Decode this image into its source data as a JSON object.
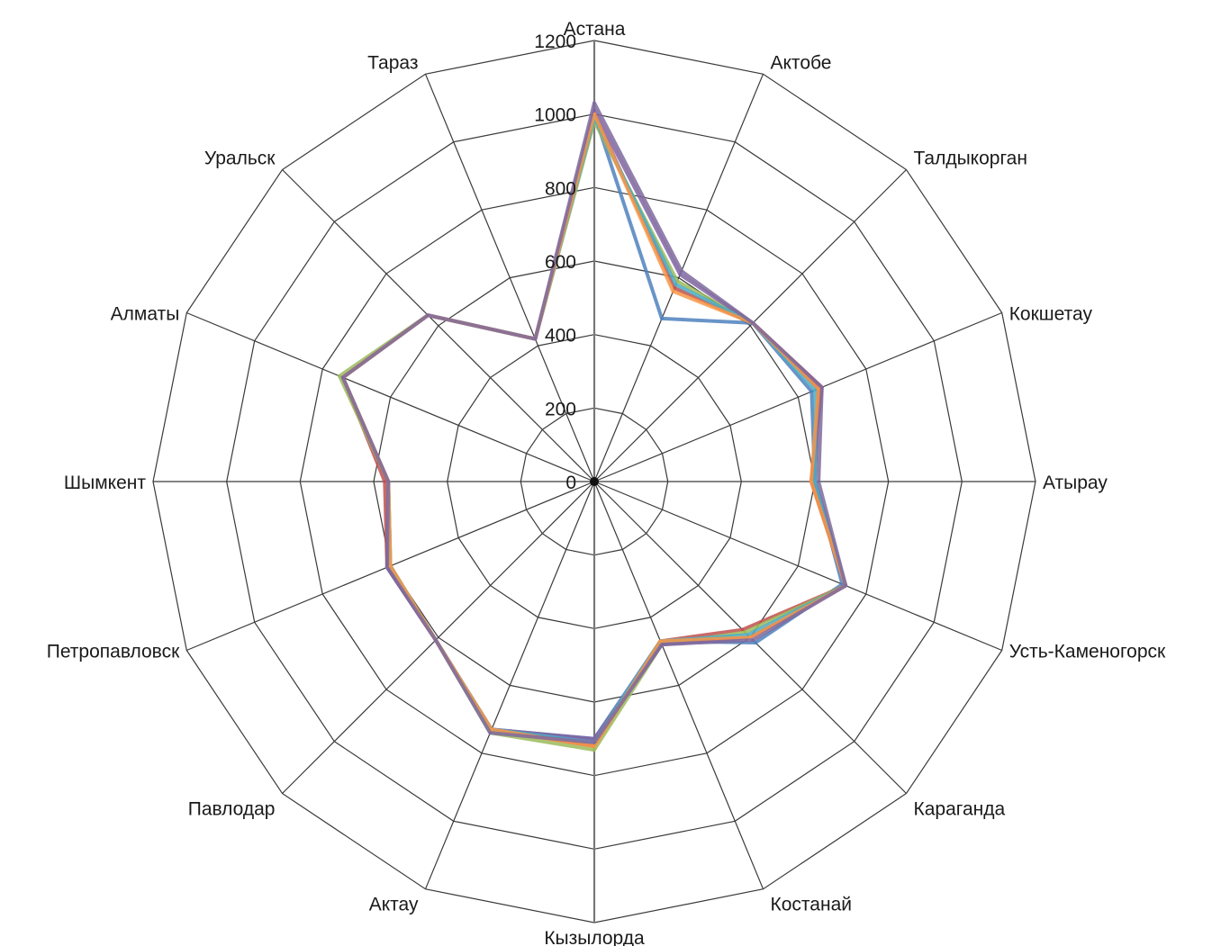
{
  "chart_data": {
    "type": "radar",
    "categories": [
      "Астана",
      "Актобе",
      "Талдыкорган",
      "Кокшетау",
      "Атырау",
      "Усть-Каменогорск",
      "Караганда",
      "Костанай",
      "Кызылорда",
      "Актау",
      "Павлодар",
      "Петропавловск",
      "Шымкент",
      "Алматы",
      "Уральск",
      "Тараз"
    ],
    "rlim": [
      0,
      1200
    ],
    "ticks": [
      0,
      200,
      400,
      600,
      800,
      1000,
      1200
    ],
    "tick_labels": [
      "0",
      "200",
      "400",
      "600",
      "800",
      "1000",
      "1200"
    ],
    "grid": true,
    "series": [
      {
        "color": "#4f81bd",
        "values": [
          1000,
          480,
          610,
          640,
          600,
          730,
          620,
          470,
          700,
          730,
          610,
          610,
          560,
          740,
          640,
          420
        ]
      },
      {
        "color": "#c0504d",
        "values": [
          1000,
          570,
          610,
          670,
          590,
          740,
          570,
          470,
          720,
          730,
          610,
          610,
          570,
          740,
          640,
          420
        ]
      },
      {
        "color": "#9bbb59",
        "values": [
          980,
          590,
          610,
          660,
          600,
          740,
          580,
          480,
          730,
          740,
          610,
          600,
          560,
          750,
          640,
          420
        ]
      },
      {
        "color": "#8064a2",
        "values": [
          1010,
          610,
          610,
          660,
          600,
          740,
          600,
          480,
          700,
          730,
          610,
          610,
          560,
          740,
          640,
          420
        ]
      },
      {
        "color": "#4bacc6",
        "values": [
          990,
          580,
          610,
          650,
          600,
          740,
          590,
          470,
          710,
          730,
          610,
          600,
          560,
          740,
          640,
          420
        ]
      },
      {
        "color": "#f79646",
        "values": [
          1000,
          560,
          610,
          660,
          590,
          740,
          600,
          470,
          720,
          730,
          610,
          600,
          560,
          740,
          640,
          420
        ]
      },
      {
        "color": "#7f6a9e",
        "values": [
          1030,
          620,
          610,
          670,
          610,
          740,
          610,
          480,
          710,
          740,
          610,
          610,
          560,
          740,
          640,
          420
        ]
      }
    ]
  }
}
